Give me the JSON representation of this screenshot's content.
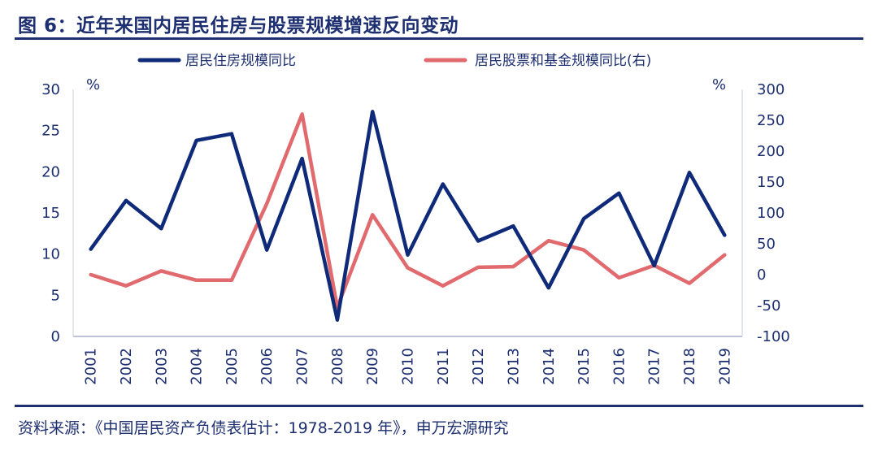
{
  "header": {
    "title": "图 6：近年来国内居民住房与股票规模增速反向变动"
  },
  "footer": {
    "source": "资料来源：《中国居民资产负债表估计：1978-2019 年》，申万宏源研究"
  },
  "chart_data": {
    "type": "line",
    "x": [
      "2001",
      "2002",
      "2003",
      "2004",
      "2005",
      "2006",
      "2007",
      "2008",
      "2009",
      "2010",
      "2011",
      "2012",
      "2013",
      "2014",
      "2015",
      "2016",
      "2017",
      "2018",
      "2019"
    ],
    "left_axis": {
      "unit": "%",
      "ylim": [
        0,
        30
      ],
      "ticks": [
        0,
        5,
        10,
        15,
        20,
        25,
        30
      ]
    },
    "right_axis": {
      "unit": "%",
      "ylim": [
        -100,
        300
      ],
      "ticks": [
        -100,
        -50,
        0,
        50,
        100,
        150,
        200,
        250,
        300
      ]
    },
    "legend_position": "top",
    "grid": false,
    "series": [
      {
        "name": "居民住房规模同比",
        "axis": "left",
        "color": "#0e2a78",
        "values": [
          10.6,
          16.5,
          13.1,
          23.8,
          24.6,
          10.5,
          21.6,
          2.0,
          27.3,
          9.9,
          18.5,
          11.6,
          13.4,
          5.9,
          14.3,
          17.4,
          8.6,
          19.9,
          12.3
        ]
      },
      {
        "name": "居民股票和基金规模同比(右)",
        "axis": "right",
        "color": "#e06a6e",
        "values": [
          0,
          -18,
          6,
          -9,
          -9,
          115,
          260,
          -53,
          97,
          11,
          -18,
          12,
          13,
          55,
          40,
          -5,
          15,
          -14,
          32
        ]
      }
    ]
  }
}
